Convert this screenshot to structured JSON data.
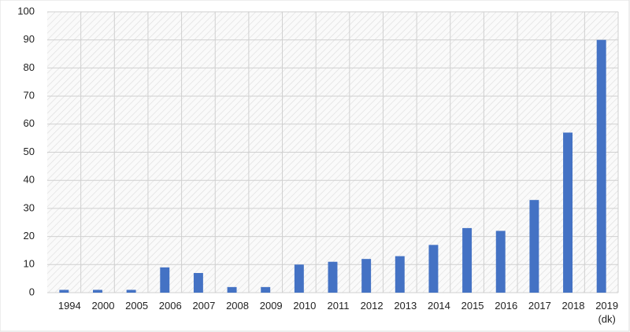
{
  "chart_data": {
    "type": "bar",
    "categories": [
      "1994",
      "2000",
      "2005",
      "2006",
      "2007",
      "2008",
      "2009",
      "2010",
      "2011",
      "2012",
      "2013",
      "2014",
      "2015",
      "2016",
      "2017",
      "2018",
      "2019\n(dk)"
    ],
    "values": [
      1,
      1,
      1,
      9,
      7,
      2,
      2,
      10,
      11,
      12,
      13,
      17,
      23,
      22,
      33,
      57,
      90
    ],
    "color": "#4472c4",
    "ylim": [
      0,
      100
    ],
    "yticks": [
      0,
      10,
      20,
      30,
      40,
      50,
      60,
      70,
      80,
      90,
      100
    ],
    "grid": true
  }
}
